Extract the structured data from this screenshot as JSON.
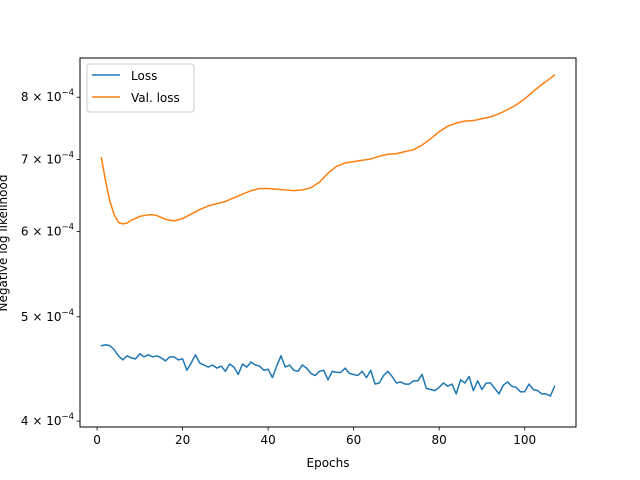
{
  "chart_data": {
    "type": "line",
    "title": "",
    "xlabel": "Epochs",
    "ylabel": "Negative log likelihood",
    "xlim": [
      -4,
      112
    ],
    "ylim": [
      0.000395,
      0.00087
    ],
    "y_scale": "log",
    "grid": false,
    "legend_position": "top-left",
    "x_ticks": [
      0,
      20,
      40,
      60,
      80,
      100
    ],
    "x_tick_labels": [
      "0",
      "20",
      "40",
      "60",
      "80",
      "100"
    ],
    "y_ticks": [
      0.0004,
      0.0005,
      0.0006,
      0.0007,
      0.0008
    ],
    "y_tick_labels": [
      {
        "base": "4 × 10",
        "exp": "−4"
      },
      {
        "base": "5 × 10",
        "exp": "−4"
      },
      {
        "base": "6 × 10",
        "exp": "−4"
      },
      {
        "base": "7 × 10",
        "exp": "−4"
      },
      {
        "base": "8 × 10",
        "exp": "−4"
      }
    ],
    "series": [
      {
        "name": "Loss",
        "color": "#1f77b4",
        "x": [
          1,
          2,
          3,
          4,
          5,
          6,
          7,
          8,
          9,
          10,
          11,
          12,
          13,
          14,
          15,
          16,
          17,
          18,
          19,
          20,
          21,
          22,
          23,
          24,
          25,
          26,
          27,
          28,
          29,
          30,
          31,
          32,
          33,
          34,
          35,
          36,
          37,
          38,
          39,
          40,
          41,
          42,
          43,
          44,
          45,
          46,
          47,
          48,
          49,
          50,
          51,
          52,
          53,
          54,
          55,
          56,
          57,
          58,
          59,
          60,
          61,
          62,
          63,
          64,
          65,
          66,
          67,
          68,
          69,
          70,
          71,
          72,
          73,
          74,
          75,
          76,
          77,
          78,
          79,
          80,
          81,
          82,
          83,
          84,
          85,
          86,
          87,
          88,
          89,
          90,
          91,
          92,
          93,
          94,
          95,
          96,
          97,
          98,
          99,
          100,
          101,
          102,
          103,
          104,
          105,
          106,
          107
        ],
        "values": [
          0.00047,
          0.000471,
          0.00047,
          0.000466,
          0.00046,
          0.000456,
          0.00046,
          0.000458,
          0.000457,
          0.000462,
          0.000459,
          0.000461,
          0.000459,
          0.00046,
          0.000458,
          0.000455,
          0.000459,
          0.000459,
          0.000456,
          0.000457,
          0.000446,
          0.000453,
          0.000461,
          0.000453,
          0.000451,
          0.000449,
          0.000451,
          0.000448,
          0.00045,
          0.000445,
          0.000452,
          0.000449,
          0.000442,
          0.000452,
          0.000449,
          0.000454,
          0.000451,
          0.00045,
          0.000446,
          0.000447,
          0.000439,
          0.00045,
          0.00046,
          0.000449,
          0.000451,
          0.000446,
          0.000445,
          0.000451,
          0.000448,
          0.000443,
          0.000441,
          0.000445,
          0.000446,
          0.000437,
          0.000445,
          0.000444,
          0.000444,
          0.000448,
          0.000443,
          0.000442,
          0.000441,
          0.000445,
          0.000439,
          0.000446,
          0.000433,
          0.000434,
          0.000441,
          0.000445,
          0.00044,
          0.000434,
          0.000435,
          0.000433,
          0.000433,
          0.000436,
          0.000436,
          0.000442,
          0.000429,
          0.000428,
          0.000427,
          0.00043,
          0.000434,
          0.000431,
          0.000433,
          0.000424,
          0.000437,
          0.000434,
          0.00044,
          0.000427,
          0.000436,
          0.000428,
          0.000434,
          0.000434,
          0.000429,
          0.000424,
          0.000432,
          0.000435,
          0.000431,
          0.00043,
          0.000426,
          0.000426,
          0.000433,
          0.000428,
          0.000427,
          0.000424,
          0.000424,
          0.000422,
          0.000431
        ]
      },
      {
        "name": "Val. loss",
        "color": "#ff7f0e",
        "x": [
          1,
          2,
          3,
          4,
          5,
          6,
          7,
          8,
          9,
          10,
          12,
          13,
          14,
          16,
          18,
          20,
          22,
          24,
          26,
          28,
          30,
          32,
          34,
          36,
          38,
          40,
          42,
          44,
          46,
          48,
          50,
          52,
          54,
          56,
          58,
          60,
          62,
          64,
          66,
          68,
          70,
          72,
          74,
          76,
          78,
          80,
          82,
          84,
          86,
          88,
          90,
          92,
          94,
          96,
          98,
          100,
          102,
          104,
          106,
          107
        ],
        "values": [
          0.000703,
          0.000668,
          0.00064,
          0.000622,
          0.000612,
          0.00061,
          0.000611,
          0.000615,
          0.000617,
          0.00062,
          0.000622,
          0.000622,
          0.000621,
          0.000616,
          0.000614,
          0.000617,
          0.000623,
          0.000629,
          0.000634,
          0.000637,
          0.00064,
          0.000645,
          0.00065,
          0.000655,
          0.000658,
          0.000658,
          0.000657,
          0.000656,
          0.000655,
          0.000656,
          0.000659,
          0.000667,
          0.00068,
          0.00069,
          0.000695,
          0.000697,
          0.000699,
          0.000701,
          0.000705,
          0.000708,
          0.000709,
          0.000712,
          0.000715,
          0.000722,
          0.000732,
          0.000743,
          0.000752,
          0.000757,
          0.00076,
          0.000761,
          0.000764,
          0.000767,
          0.000772,
          0.000779,
          0.000787,
          0.000797,
          0.00081,
          0.000822,
          0.000833,
          0.000839
        ]
      }
    ]
  }
}
